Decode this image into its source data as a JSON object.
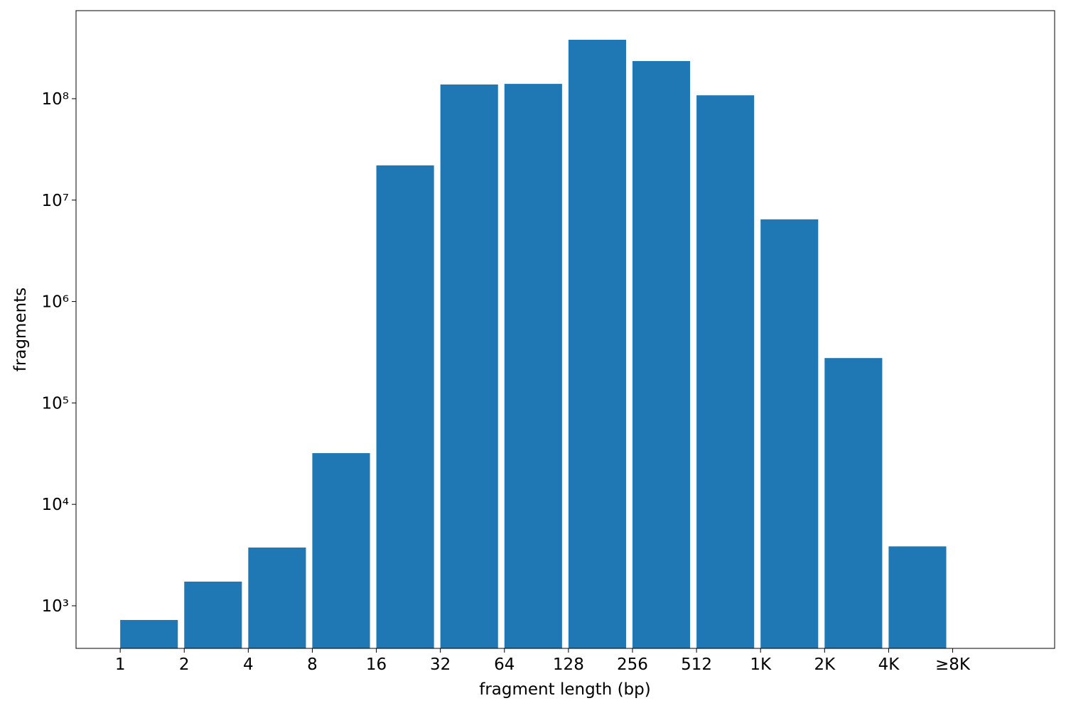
{
  "chart_data": {
    "type": "histogram",
    "xlabel": "fragment length (bp)",
    "ylabel": "fragments",
    "bins": [
      1,
      2,
      4,
      8,
      16,
      32,
      64,
      128,
      256,
      512,
      1024,
      2048,
      4096,
      8192
    ],
    "values": [
      724,
      1730,
      3750,
      32000,
      22000000,
      138000000,
      140000000,
      381000000,
      235000000,
      108000000,
      6460000,
      277000,
      3850
    ],
    "color": "#1f77b4",
    "xscale": "log",
    "yscale": "log",
    "xlim": [
      0.62,
      24700
    ],
    "ylim": [
      380,
      738000000
    ],
    "xticks": [
      1,
      2,
      4,
      8,
      16,
      32,
      64,
      128,
      256,
      512,
      {
        "value": 1024,
        "label": "1K"
      },
      {
        "value": 2048,
        "label": "2K"
      },
      {
        "value": 4096,
        "label": "4K"
      },
      {
        "value": 8192,
        "label": "≥8K"
      }
    ],
    "yticks": [
      {
        "value": 1000,
        "label": "10³"
      },
      {
        "value": 10000,
        "label": "10⁴"
      },
      {
        "value": 100000,
        "label": "10⁵"
      },
      {
        "value": 1000000,
        "label": "10⁶"
      },
      {
        "value": 10000000,
        "label": "10⁷"
      },
      {
        "value": 100000000,
        "label": "10⁸"
      }
    ]
  }
}
